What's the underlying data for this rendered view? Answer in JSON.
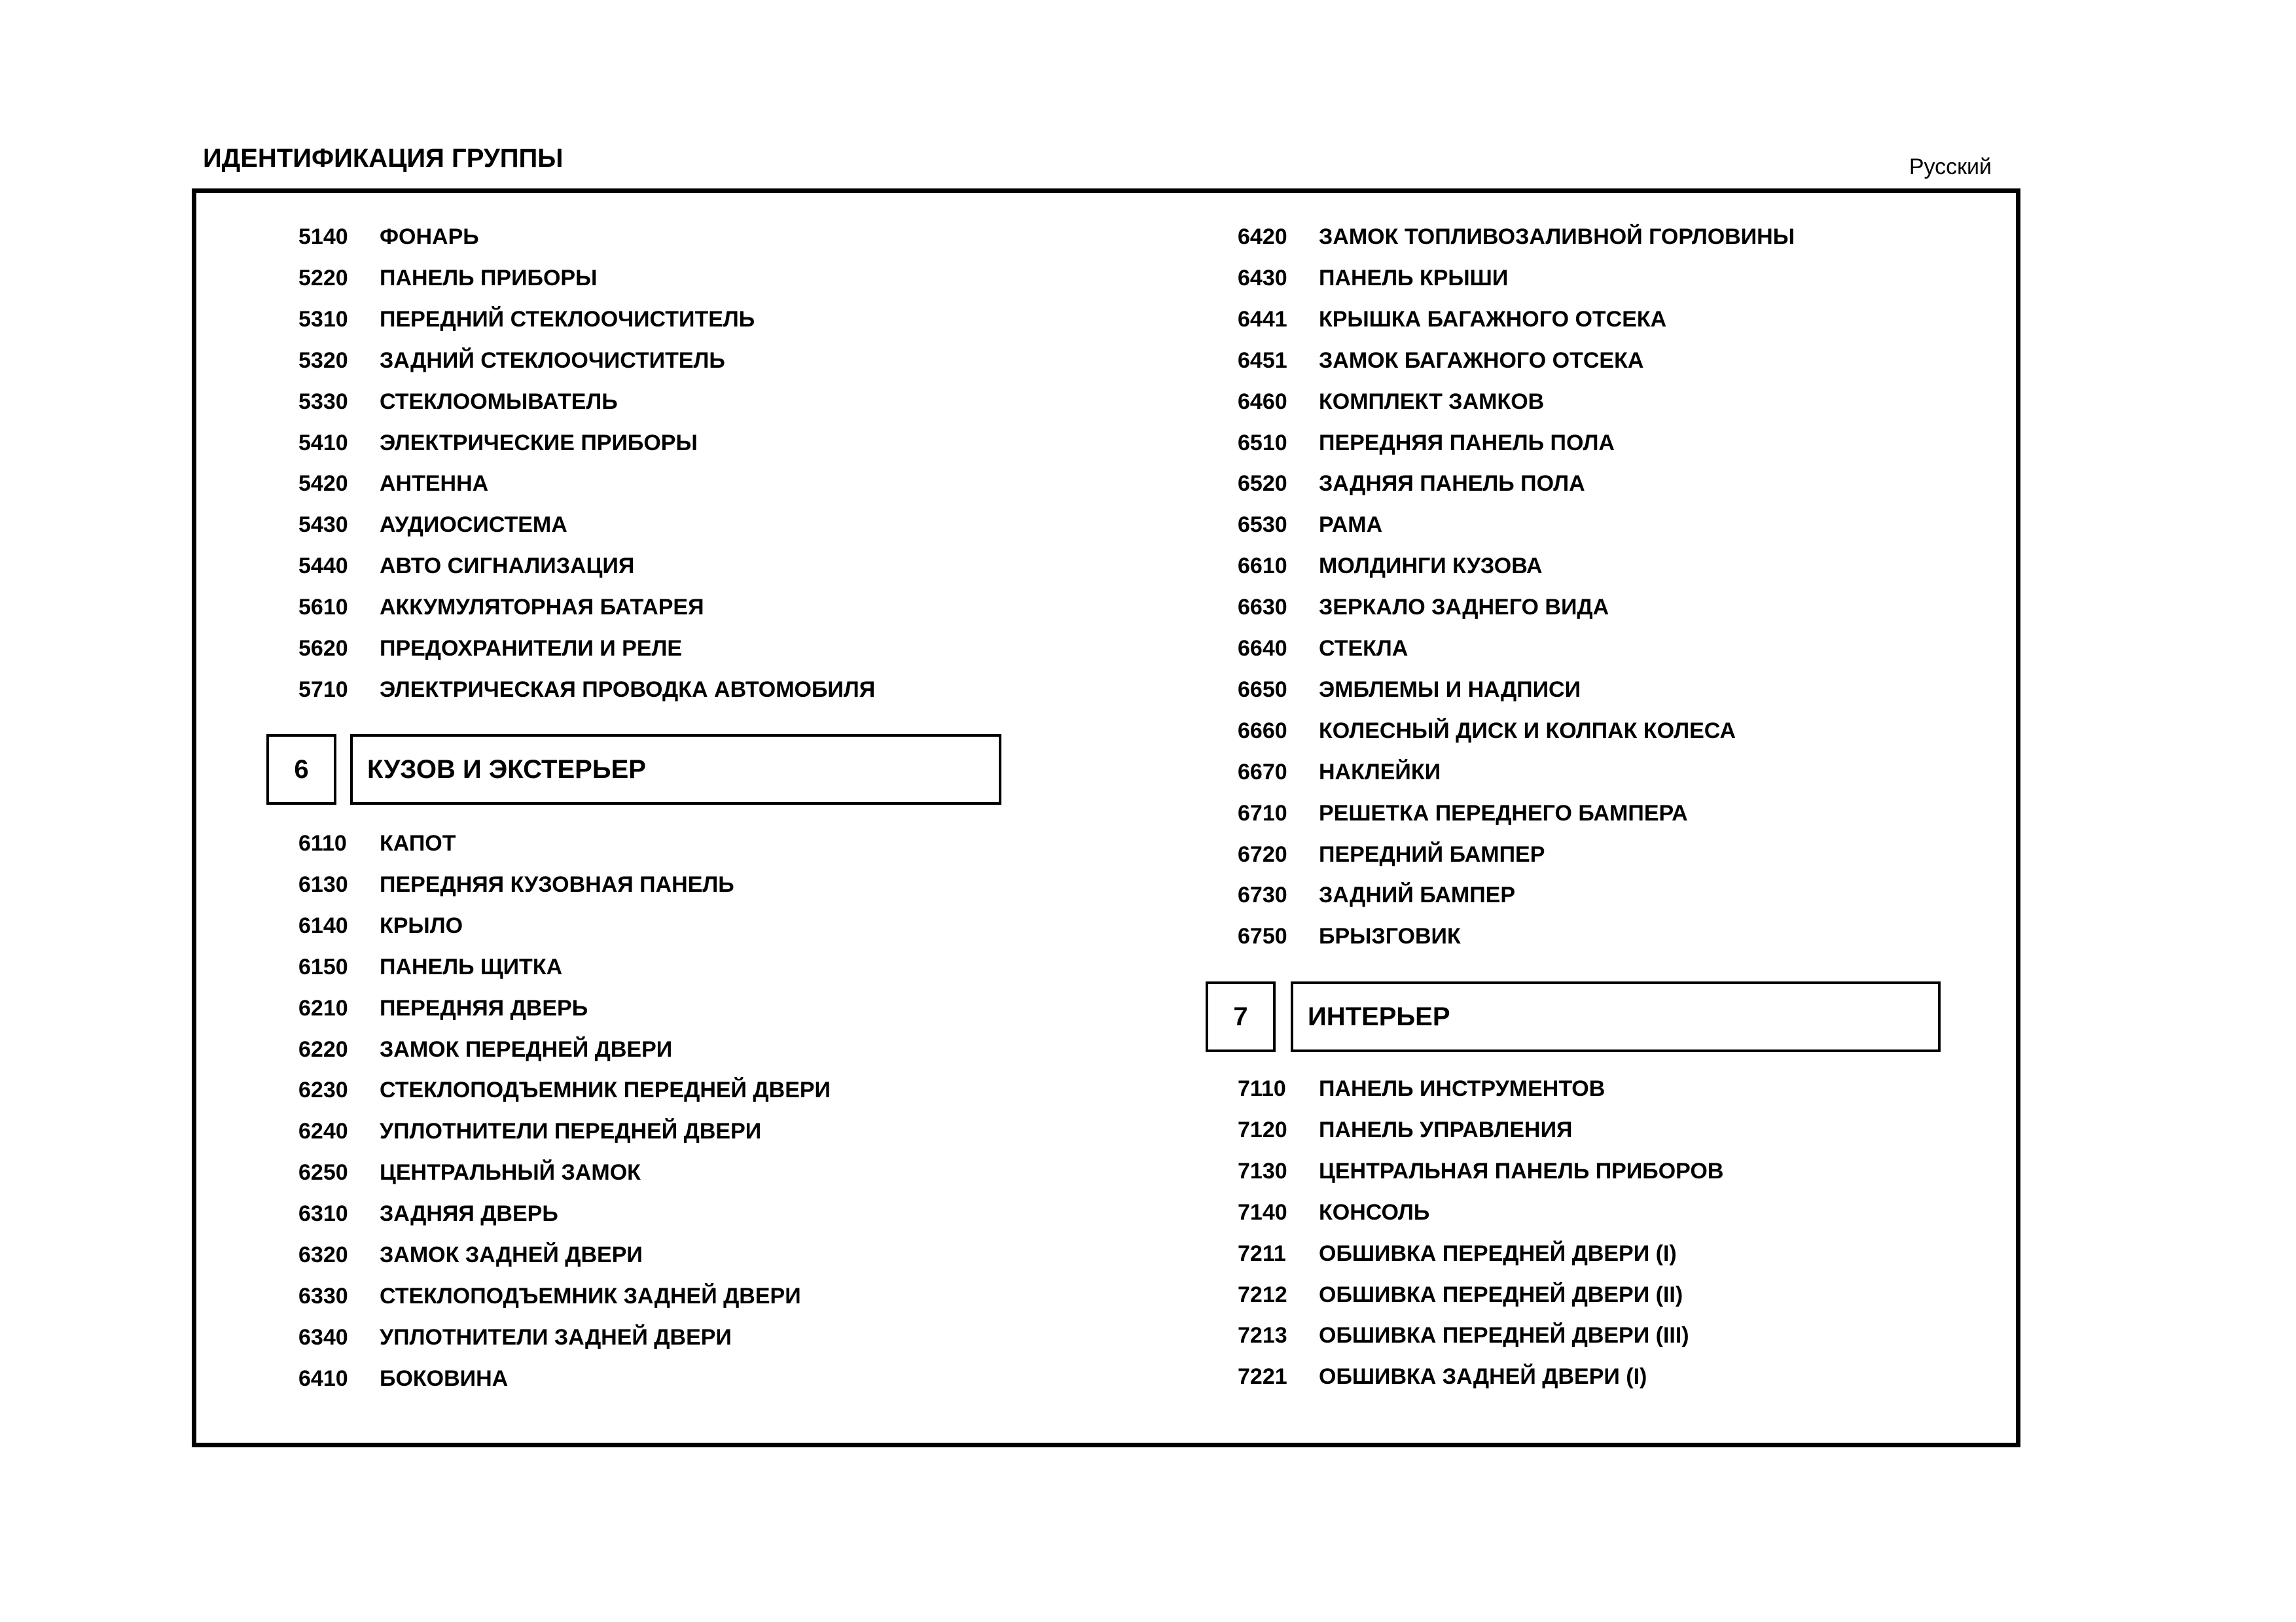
{
  "header": {
    "title": "ИДЕНТИФИКАЦИЯ ГРУППЫ",
    "language": "Русский"
  },
  "left_top": [
    {
      "code": "5140",
      "name": "ФОНАРЬ"
    },
    {
      "code": "5220",
      "name": "ПАНЕЛЬ ПРИБОРЫ"
    },
    {
      "code": "5310",
      "name": "ПЕРЕДНИЙ СТЕКЛООЧИСТИТЕЛЬ"
    },
    {
      "code": "5320",
      "name": "ЗАДНИЙ СТЕКЛООЧИСТИТЕЛЬ"
    },
    {
      "code": "5330",
      "name": "СТЕКЛООМЫВАТЕЛЬ"
    },
    {
      "code": "5410",
      "name": "ЭЛЕКТРИЧЕСКИЕ ПРИБОРЫ"
    },
    {
      "code": "5420",
      "name": "АНТЕННА"
    },
    {
      "code": "5430",
      "name": "АУДИОСИСТЕМА"
    },
    {
      "code": "5440",
      "name": "АВТО СИГНАЛИЗАЦИЯ"
    },
    {
      "code": "5610",
      "name": "АККУМУЛЯТОРНАЯ БАТАРЕЯ"
    },
    {
      "code": "5620",
      "name": "ПРЕДОХРАНИТЕЛИ И РЕЛЕ"
    },
    {
      "code": "5710",
      "name": "ЭЛЕКТРИЧЕСКАЯ ПРОВОДКА АВТОМОБИЛЯ"
    }
  ],
  "section6": {
    "number": "6",
    "title": "КУЗОВ И ЭКСТЕРЬЕР"
  },
  "left_bottom": [
    {
      "code": "6110",
      "name": "КАПОТ"
    },
    {
      "code": "6130",
      "name": "ПЕРЕДНЯЯ КУЗОВНАЯ ПАНЕЛЬ"
    },
    {
      "code": "6140",
      "name": "КРЫЛО"
    },
    {
      "code": "6150",
      "name": "ПАНЕЛЬ ЩИТКА"
    },
    {
      "code": "6210",
      "name": "ПЕРЕДНЯЯ ДВЕРЬ"
    },
    {
      "code": "6220",
      "name": "ЗАМОК ПЕРЕДНЕЙ ДВЕРИ"
    },
    {
      "code": "6230",
      "name": "СТЕКЛОПОДЪЕМНИК ПЕРЕДНЕЙ ДВЕРИ"
    },
    {
      "code": "6240",
      "name": "УПЛОТНИТЕЛИ ПЕРЕДНЕЙ ДВЕРИ"
    },
    {
      "code": "6250",
      "name": "ЦЕНТРАЛЬНЫЙ ЗАМОК"
    },
    {
      "code": "6310",
      "name": "ЗАДНЯЯ ДВЕРЬ"
    },
    {
      "code": "6320",
      "name": "ЗАМОК ЗАДНЕЙ ДВЕРИ"
    },
    {
      "code": "6330",
      "name": "СТЕКЛОПОДЪЕМНИК ЗАДНЕЙ ДВЕРИ"
    },
    {
      "code": "6340",
      "name": "УПЛОТНИТЕЛИ ЗАДНЕЙ ДВЕРИ"
    },
    {
      "code": "6410",
      "name": "БОКОВИНА"
    }
  ],
  "right_top": [
    {
      "code": "6420",
      "name": "ЗАМОК ТОПЛИВОЗАЛИВНОЙ ГОРЛОВИНЫ"
    },
    {
      "code": "6430",
      "name": "ПАНЕЛЬ КРЫШИ"
    },
    {
      "code": "6441",
      "name": "КРЫШКА БАГАЖНОГО ОТСЕКА"
    },
    {
      "code": "6451",
      "name": "ЗАМОК БАГАЖНОГО ОТСЕКА"
    },
    {
      "code": "6460",
      "name": "КОМПЛЕКТ ЗАМКОВ"
    },
    {
      "code": "6510",
      "name": "ПЕРЕДНЯЯ ПАНЕЛЬ ПОЛА"
    },
    {
      "code": "6520",
      "name": "ЗАДНЯЯ ПАНЕЛЬ ПОЛА"
    },
    {
      "code": "6530",
      "name": "РАМА"
    },
    {
      "code": "6610",
      "name": "МОЛДИНГИ КУЗОВА"
    },
    {
      "code": "6630",
      "name": "ЗЕРКАЛО ЗАДНЕГО ВИДА"
    },
    {
      "code": "6640",
      "name": "СТЕКЛА"
    },
    {
      "code": "6650",
      "name": "ЭМБЛЕМЫ И НАДПИСИ"
    },
    {
      "code": "6660",
      "name": "КОЛЕСНЫЙ ДИСК И КОЛПАК КОЛЕСА"
    },
    {
      "code": "6670",
      "name": "НАКЛЕЙКИ"
    },
    {
      "code": "6710",
      "name": "РЕШЕТКА ПЕРЕДНЕГО БАМПЕРА"
    },
    {
      "code": "6720",
      "name": "ПЕРЕДНИЙ БАМПЕР"
    },
    {
      "code": "6730",
      "name": "ЗАДНИЙ БАМПЕР"
    },
    {
      "code": "6750",
      "name": "БРЫЗГОВИК"
    }
  ],
  "section7": {
    "number": "7",
    "title": "ИНТЕРЬЕР"
  },
  "right_bottom": [
    {
      "code": "7110",
      "name": "ПАНЕЛЬ ИНСТРУМЕНТОВ"
    },
    {
      "code": "7120",
      "name": "ПАНЕЛЬ УПРАВЛЕНИЯ"
    },
    {
      "code": "7130",
      "name": "ЦЕНТРАЛЬНАЯ ПАНЕЛЬ ПРИБОРОВ"
    },
    {
      "code": "7140",
      "name": "КОНСОЛЬ"
    },
    {
      "code": "7211",
      "name": "ОБШИВКА ПЕРЕДНЕЙ ДВЕРИ (I)"
    },
    {
      "code": "7212",
      "name": "ОБШИВКА ПЕРЕДНЕЙ ДВЕРИ (II)"
    },
    {
      "code": "7213",
      "name": "ОБШИВКА ПЕРЕДНЕЙ ДВЕРИ (III)"
    },
    {
      "code": "7221",
      "name": "ОБШИВКА ЗАДНЕЙ ДВЕРИ (I)"
    }
  ]
}
